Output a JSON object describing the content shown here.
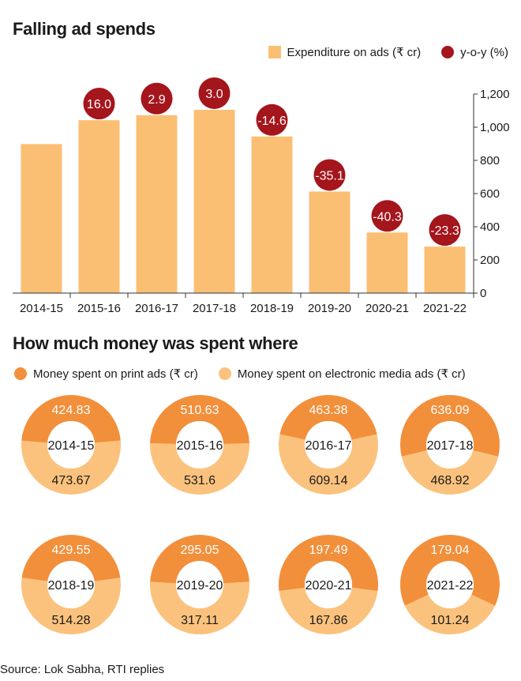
{
  "colors": {
    "bar": "#fbbf74",
    "yoy": "#a5151c",
    "print": "#f28f3b",
    "electronic": "#fbc27d",
    "axis": "#333333"
  },
  "section1": {
    "title": "Falling ad spends"
  },
  "section2": {
    "title": "How much money was spent where"
  },
  "source": "Source: Lok Sabha, RTI replies",
  "chart_data": [
    {
      "type": "bar",
      "title": "Falling ad spends",
      "categories": [
        "2014-15",
        "2015-16",
        "2016-17",
        "2017-18",
        "2018-19",
        "2019-20",
        "2020-21",
        "2021-22"
      ],
      "series": [
        {
          "name": "Expenditure on ads (₹ cr)",
          "values": [
            898.5,
            1042.23,
            1072.52,
            1105.01,
            943.83,
            612.16,
            365.35,
            280.28
          ]
        },
        {
          "name": "y-o-y (%)",
          "values": [
            null,
            16.0,
            2.9,
            3.0,
            -14.6,
            -35.1,
            -40.3,
            -23.3
          ]
        }
      ],
      "yticks": [
        "0",
        "200",
        "400",
        "600",
        "800",
        "1,000",
        "1,200"
      ],
      "ylim": [
        0,
        1200
      ],
      "legend": "top-right"
    },
    {
      "type": "pie",
      "title": "How much money was spent where",
      "legend": [
        "Money spent on print ads (₹ cr)",
        "Money spent on electronic media ads (₹ cr)"
      ],
      "donuts": [
        {
          "year": "2014-15",
          "print": 424.83,
          "electronic": 473.67,
          "print_label": "424.83",
          "electronic_label": "473.67"
        },
        {
          "year": "2015-16",
          "print": 510.63,
          "electronic": 531.6,
          "print_label": "510.63",
          "electronic_label": "531.6"
        },
        {
          "year": "2016-17",
          "print": 463.38,
          "electronic": 609.14,
          "print_label": "463.38",
          "electronic_label": "609.14"
        },
        {
          "year": "2017-18",
          "print": 636.09,
          "electronic": 468.92,
          "print_label": "636.09",
          "electronic_label": "468.92"
        },
        {
          "year": "2018-19",
          "print": 429.55,
          "electronic": 514.28,
          "print_label": "429.55",
          "electronic_label": "514.28"
        },
        {
          "year": "2019-20",
          "print": 295.05,
          "electronic": 317.11,
          "print_label": "295.05",
          "electronic_label": "317.11"
        },
        {
          "year": "2020-21",
          "print": 197.49,
          "electronic": 167.86,
          "print_label": "197.49",
          "electronic_label": "167.86"
        },
        {
          "year": "2021-22",
          "print": 179.04,
          "electronic": 101.24,
          "print_label": "179.04",
          "electronic_label": "101.24"
        }
      ]
    }
  ]
}
